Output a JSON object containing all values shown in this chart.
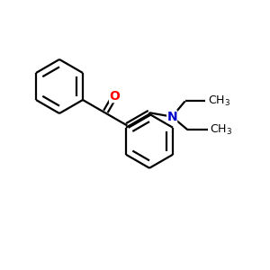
{
  "bg_color": "#ffffff",
  "bond_color": "#000000",
  "O_color": "#ff0000",
  "N_color": "#0000cc",
  "line_width": 1.6,
  "font_size_atom": 10,
  "fig_width": 3.0,
  "fig_height": 3.0,
  "dpi": 100
}
